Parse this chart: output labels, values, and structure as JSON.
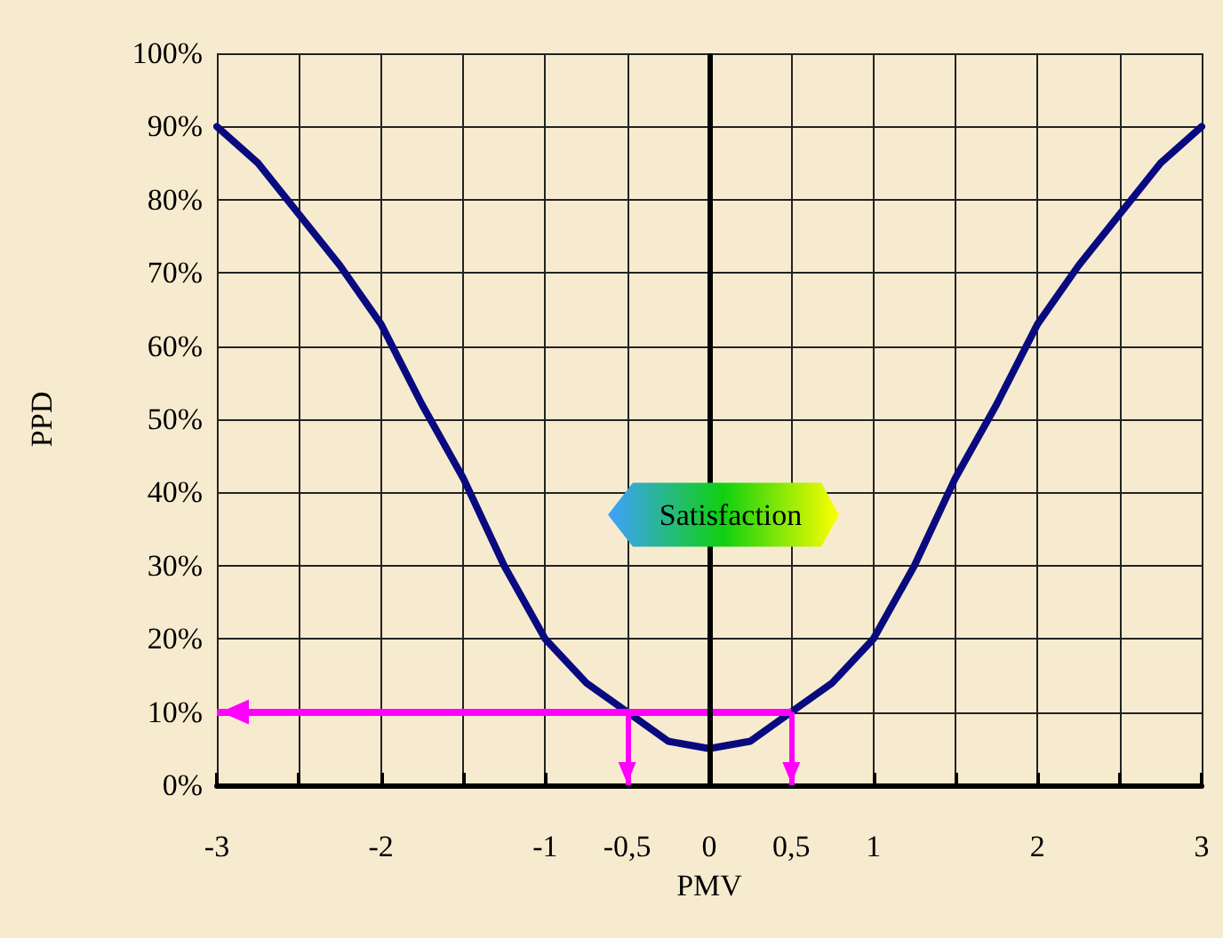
{
  "chart_data": {
    "type": "line",
    "xlabel": "PMV",
    "ylabel": "PPD",
    "x": [
      -3,
      -2.75,
      -2.5,
      -2.25,
      -2,
      -1.75,
      -1.5,
      -1.25,
      -1,
      -0.75,
      -0.5,
      -0.25,
      0,
      0.25,
      0.5,
      0.75,
      1,
      1.25,
      1.5,
      1.75,
      2,
      2.25,
      2.5,
      2.75,
      3
    ],
    "series": [
      {
        "color": "#0a0a80",
        "values": [
          90,
          85,
          78,
          71,
          63,
          52,
          42,
          30,
          20,
          14,
          10,
          6,
          5,
          6,
          10,
          14,
          20,
          30,
          42,
          52,
          63,
          71,
          78,
          85,
          90
        ]
      }
    ],
    "xlim": [
      -3,
      3
    ],
    "xticks": [
      -3,
      {
        "value": -2.5,
        "label": null
      },
      -2,
      {
        "value": -1.5,
        "label": null
      },
      -1,
      {
        "value": -0.5,
        "label": "-0,5"
      },
      0,
      {
        "value": 0.5,
        "label": "0,5"
      },
      1,
      {
        "value": 1.5,
        "label": null
      },
      2,
      {
        "value": 2.5,
        "label": null
      },
      3
    ],
    "ylim": [
      0,
      100
    ],
    "yticks": [
      {
        "value": 0,
        "label": "0%"
      },
      {
        "value": 10,
        "label": "10%"
      },
      {
        "value": 20,
        "label": "20%"
      },
      {
        "value": 30,
        "label": "30%"
      },
      {
        "value": 40,
        "label": "40%"
      },
      {
        "value": 50,
        "label": "50%"
      },
      {
        "value": 60,
        "label": "60%"
      },
      {
        "value": 70,
        "label": "70%"
      },
      {
        "value": 80,
        "label": "80%"
      },
      {
        "value": 90,
        "label": "90%"
      },
      {
        "value": 100,
        "label": "100%"
      }
    ],
    "grid": true,
    "marker": "none",
    "line_style": "solid",
    "ref_lines": [
      {
        "axis": "x",
        "value": 0,
        "color": "#000000"
      },
      {
        "axis": "y",
        "value": 10,
        "color": "#ff00ff"
      },
      {
        "axis": "x",
        "value": -0.5,
        "color": "#ff00ff"
      },
      {
        "axis": "x",
        "value": 0.5,
        "color": "#ff00ff"
      }
    ],
    "annotations": [
      {
        "text": "Satisfaction",
        "x": 0,
        "y": 35
      }
    ]
  }
}
